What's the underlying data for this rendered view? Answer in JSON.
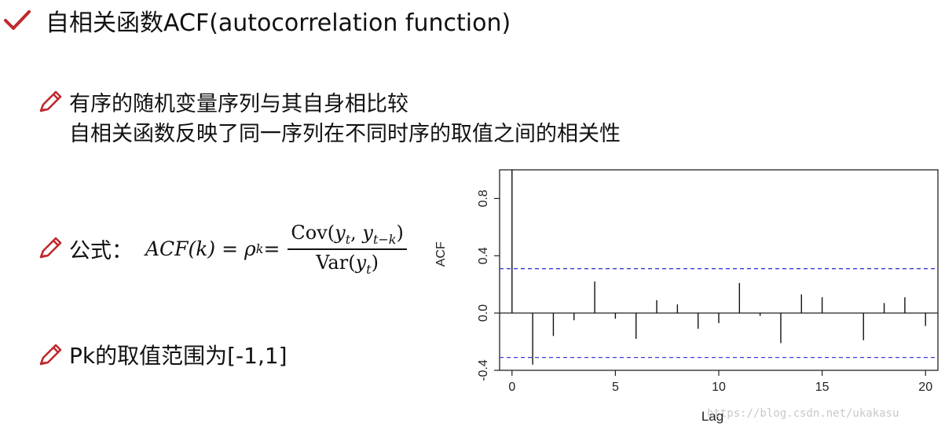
{
  "header": {
    "icon": "checkmark-icon",
    "title": "自相关函数ACF(autocorrelation function)"
  },
  "bullets": [
    {
      "icon": "pencil-icon",
      "lines": [
        "有序的随机变量序列与其自身相比较",
        "自相关函数反映了同一序列在不同时序的取值之间的相关性"
      ]
    },
    {
      "icon": "pencil-icon",
      "label": "公式：",
      "formula": {
        "lhs": "ACF(k) = ρ",
        "lhs_sub": "k",
        "eq": " =",
        "num_prefix": "Cov(",
        "num_y1": "y",
        "num_s1": "t",
        "num_sep": ", ",
        "num_y2": "y",
        "num_s2": "t−k",
        "num_suffix": ")",
        "den_prefix": "Var(",
        "den_y": "y",
        "den_s": "t",
        "den_suffix": ")"
      }
    },
    {
      "icon": "pencil-icon",
      "text": "Pk的取值范围为[-1,1]"
    }
  ],
  "watermark": "https://blog.csdn.net/ukakasu",
  "colors": {
    "icon_red": "#c0282d",
    "ci_line": "#3a3ad8",
    "spike": "#111111"
  },
  "chart_data": {
    "type": "bar",
    "xlabel": "Lag",
    "ylabel": "ACF",
    "xlim": [
      -0.6,
      20.6
    ],
    "ylim": [
      -0.4,
      1.0
    ],
    "x_ticks": [
      0,
      5,
      10,
      15,
      20
    ],
    "y_ticks": [
      -0.4,
      0.0,
      0.4,
      0.8
    ],
    "y_tick_labels": [
      "-0.4",
      "0.0",
      "0.4",
      "0.8"
    ],
    "lags": [
      0,
      1,
      2,
      3,
      4,
      5,
      6,
      7,
      8,
      9,
      10,
      11,
      12,
      13,
      14,
      15,
      16,
      17,
      18,
      19,
      20
    ],
    "values": [
      1.0,
      -0.36,
      -0.16,
      -0.05,
      0.22,
      -0.04,
      -0.18,
      0.09,
      0.06,
      -0.11,
      -0.07,
      0.21,
      -0.02,
      -0.21,
      0.13,
      0.11,
      0.0,
      -0.19,
      0.07,
      0.11,
      -0.09
    ],
    "confidence_bound": 0.31,
    "grid": false
  }
}
